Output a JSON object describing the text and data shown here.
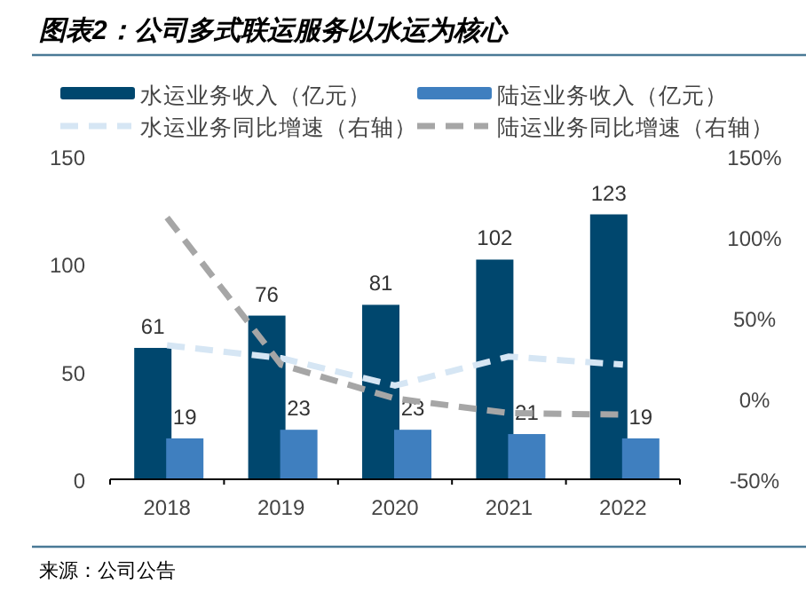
{
  "chart_data": {
    "type": "bar",
    "title": "图表2：公司多式联运服务以水运为核心",
    "categories": [
      "2018",
      "2019",
      "2020",
      "2021",
      "2022"
    ],
    "series": [
      {
        "name": "水运业务收入（亿元）",
        "color": "#00476e",
        "values": [
          61,
          76,
          81,
          102,
          123
        ],
        "value_labels": [
          "61",
          "76",
          "81",
          "102",
          "123"
        ]
      },
      {
        "name": "陆运业务收入（亿元）",
        "color": "#3f7fbf",
        "values": [
          19,
          23,
          23,
          21,
          19
        ],
        "value_labels": [
          "19",
          "23",
          "23",
          "21",
          "19"
        ]
      },
      {
        "name": "水运业务同比增速（右轴）",
        "type": "line",
        "axis": "y2",
        "color": "#d6e6f4",
        "line_style": "dashed",
        "values": [
          33,
          25,
          8,
          26,
          21
        ]
      },
      {
        "name": "陆运业务同比增速（右轴）",
        "type": "line",
        "axis": "y2",
        "color": "#a6a6a6",
        "line_style": "dashed",
        "values": [
          112,
          21,
          0,
          -9,
          -10
        ]
      }
    ],
    "ylim": [
      0,
      150
    ],
    "yticks": [
      0,
      50,
      100,
      150
    ],
    "y2lim": [
      -50,
      150
    ],
    "y2ticks": [
      {
        "value": -50,
        "label": "-50%"
      },
      {
        "value": 0,
        "label": "0%"
      },
      {
        "value": 50,
        "label": "50%"
      },
      {
        "value": 100,
        "label": "100%"
      },
      {
        "value": 150,
        "label": "150%"
      }
    ],
    "grid": false,
    "legend": "top",
    "marker": "none",
    "annotations": [
      "来源：公司公告"
    ]
  }
}
